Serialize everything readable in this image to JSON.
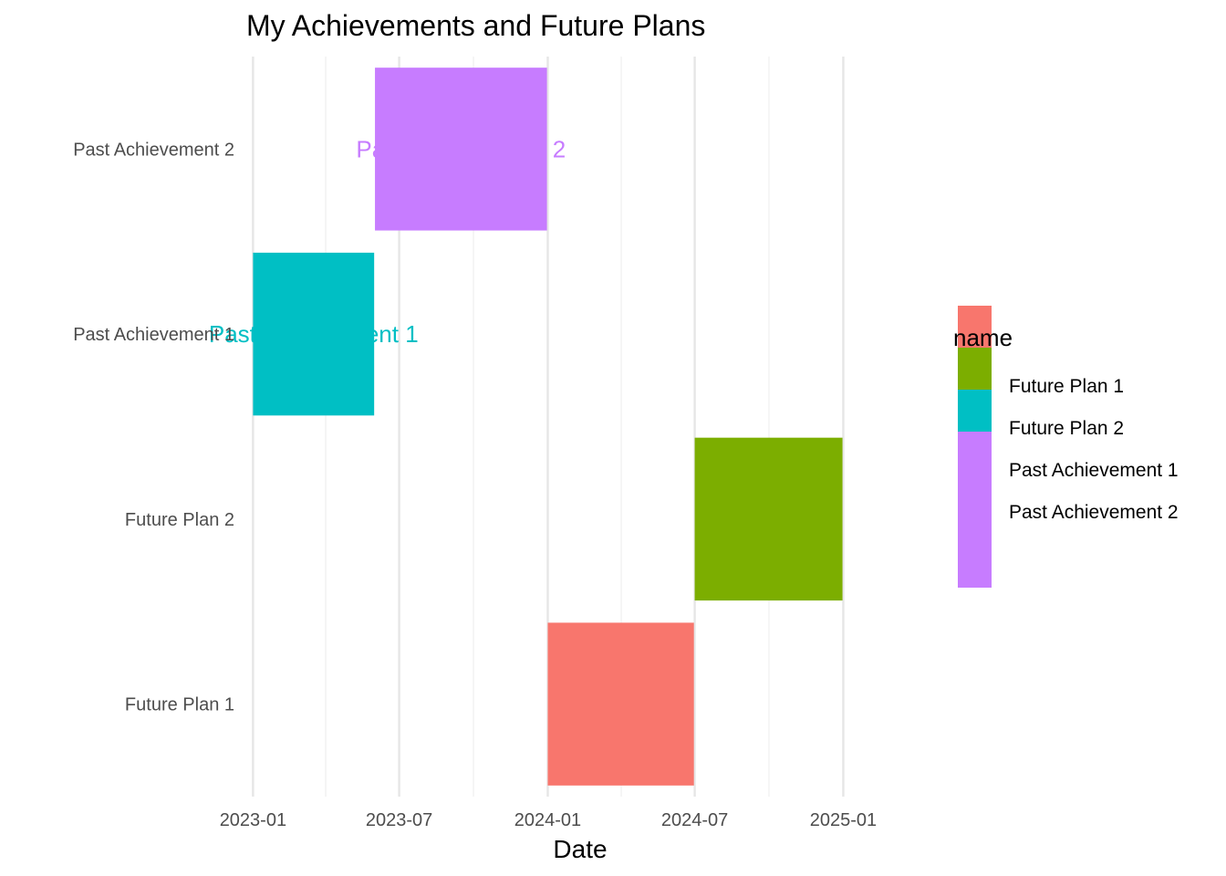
{
  "chart_data": {
    "type": "gantt",
    "title": "My Achievements and Future Plans",
    "xlabel": "Date",
    "ylabel": "",
    "x_axis": {
      "type": "date",
      "range": [
        "2022-12-18",
        "2025-04-02"
      ],
      "ticks": [
        "2023-01-01",
        "2023-07-01",
        "2024-01-01",
        "2024-07-01",
        "2025-01-01"
      ],
      "tick_labels": [
        "2023-01",
        "2023-07",
        "2024-01",
        "2024-07",
        "2025-01"
      ],
      "minor_ticks": [
        "2023-04-01",
        "2023-10-01",
        "2024-04-01",
        "2024-10-01"
      ]
    },
    "categories": [
      "Future Plan 1",
      "Future Plan 2",
      "Past Achievement 1",
      "Past Achievement 2"
    ],
    "tasks": [
      {
        "name": "Future Plan 1",
        "start": "2024-01-01",
        "end": "2024-06-30",
        "color": "#F8766D",
        "label": "Future Plan 1"
      },
      {
        "name": "Future Plan 2",
        "start": "2024-07-01",
        "end": "2024-12-31",
        "color": "#7CAE00",
        "label": "Future Plan 2"
      },
      {
        "name": "Past Achievement 1",
        "start": "2023-01-01",
        "end": "2023-05-31",
        "color": "#00BFC4",
        "label": "Past Achievement 1"
      },
      {
        "name": "Past Achievement 2",
        "start": "2023-06-01",
        "end": "2023-12-31",
        "color": "#C77CFF",
        "label": "Past Achievement 2"
      }
    ],
    "legend": {
      "title": "name",
      "position": "right",
      "items": [
        {
          "label": "Future Plan 1",
          "color": "#F8766D"
        },
        {
          "label": "Future Plan 2",
          "color": "#7CAE00"
        },
        {
          "label": "Past Achievement 1",
          "color": "#00BFC4"
        },
        {
          "label": "Past Achievement 2",
          "color": "#C77CFF"
        }
      ]
    },
    "grid": true,
    "colors": {
      "grid_major": "#e6e6e6",
      "grid_minor": "#efefef",
      "tick_text": "#4d4d4d"
    }
  }
}
